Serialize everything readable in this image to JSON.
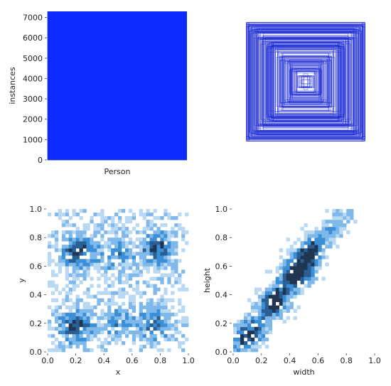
{
  "chart_data": [
    {
      "type": "bar",
      "categories": [
        "Person"
      ],
      "values": [
        7300
      ],
      "xlabel": "",
      "ylabel": "instances",
      "ylim": [
        0,
        7300
      ],
      "yticks": [
        0,
        1000,
        2000,
        3000,
        4000,
        5000,
        6000,
        7000
      ],
      "bar_color": "#0d2bff",
      "grid": false
    },
    {
      "type": "scatter",
      "subtype": "bounding-box-overlay",
      "xlabel": "",
      "ylabel": "",
      "box_color": "#1e2bd6",
      "axes": false,
      "description_boxes": [
        {
          "w": 0.98,
          "h": 0.98
        },
        {
          "w": 0.92,
          "h": 0.86
        },
        {
          "w": 0.85,
          "h": 0.9
        },
        {
          "w": 0.78,
          "h": 0.74
        },
        {
          "w": 0.7,
          "h": 0.8
        },
        {
          "w": 0.62,
          "h": 0.58
        },
        {
          "w": 0.55,
          "h": 0.66
        },
        {
          "w": 0.46,
          "h": 0.5
        },
        {
          "w": 0.38,
          "h": 0.42
        },
        {
          "w": 0.3,
          "h": 0.34
        },
        {
          "w": 0.22,
          "h": 0.26
        },
        {
          "w": 0.14,
          "h": 0.18
        },
        {
          "w": 0.08,
          "h": 0.1
        }
      ]
    },
    {
      "type": "heatmap",
      "xlabel": "x",
      "ylabel": "y",
      "xlim": [
        0,
        1
      ],
      "ylim": [
        0,
        1
      ],
      "xticks": [
        0.0,
        0.2,
        0.4,
        0.6,
        0.8,
        1.0
      ],
      "yticks": [
        0.0,
        0.2,
        0.4,
        0.6,
        0.8,
        1.0
      ],
      "hotspots": [
        {
          "x": 0.22,
          "y": 0.7,
          "weight": 1.0
        },
        {
          "x": 0.78,
          "y": 0.72,
          "weight": 0.9
        },
        {
          "x": 0.2,
          "y": 0.18,
          "weight": 0.9
        },
        {
          "x": 0.76,
          "y": 0.2,
          "weight": 0.7
        },
        {
          "x": 0.5,
          "y": 0.68,
          "weight": 0.6
        },
        {
          "x": 0.5,
          "y": 0.2,
          "weight": 0.5
        }
      ],
      "colors": [
        "#b9d9f3",
        "#7fb8ea",
        "#3b8fd6",
        "#2a5f94",
        "#1f3550"
      ]
    },
    {
      "type": "heatmap",
      "xlabel": "width",
      "ylabel": "height",
      "xlim": [
        0,
        1
      ],
      "ylim": [
        0,
        1
      ],
      "xticks": [
        0.0,
        0.2,
        0.4,
        0.6,
        0.8,
        1.0
      ],
      "yticks": [
        0.0,
        0.2,
        0.4,
        0.6,
        0.8,
        1.0
      ],
      "hotspots": [
        {
          "x": 0.45,
          "y": 0.55,
          "weight": 1.0
        },
        {
          "x": 0.3,
          "y": 0.35,
          "weight": 0.8
        },
        {
          "x": 0.12,
          "y": 0.12,
          "weight": 0.7
        },
        {
          "x": 0.55,
          "y": 0.7,
          "weight": 0.7
        }
      ],
      "colors": [
        "#b9d9f3",
        "#7fb8ea",
        "#3b8fd6",
        "#2a5f94",
        "#1f3550"
      ]
    }
  ]
}
